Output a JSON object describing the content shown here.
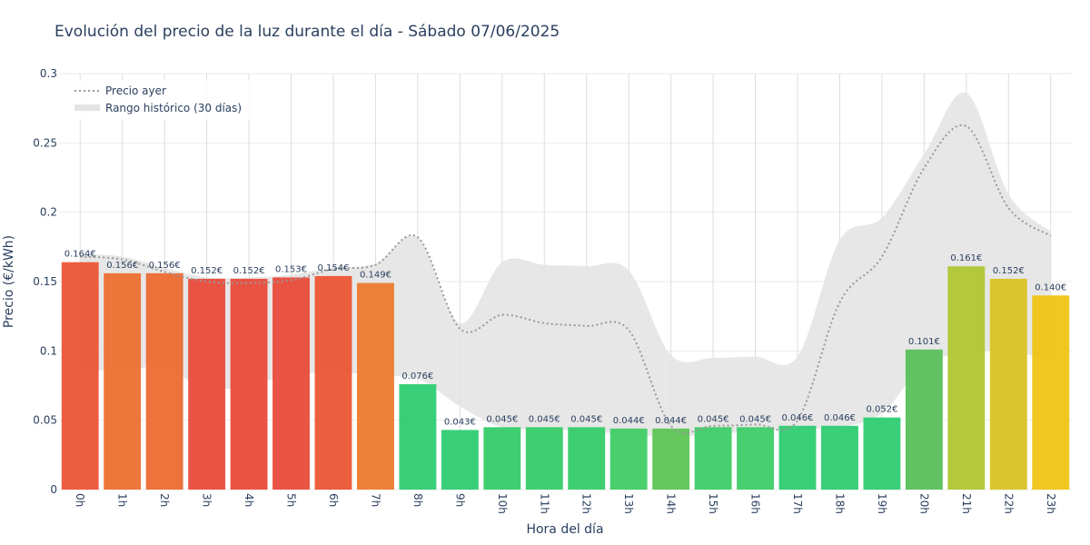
{
  "chart_data": {
    "type": "bar",
    "title": "Evolución del precio de la luz durante el día - Sábado 07/06/2025",
    "xlabel": "Hora del día",
    "ylabel": "Precio (€/kWh)",
    "ylim": [
      0,
      0.3
    ],
    "yticks": [
      "0",
      "0.05",
      "0.1",
      "0.15",
      "0.2",
      "0.25",
      "0.3"
    ],
    "ytick_values": [
      0,
      0.05,
      0.1,
      0.15,
      0.2,
      0.25,
      0.3
    ],
    "categories": [
      "0h",
      "1h",
      "2h",
      "3h",
      "4h",
      "5h",
      "6h",
      "7h",
      "8h",
      "9h",
      "10h",
      "11h",
      "12h",
      "13h",
      "14h",
      "15h",
      "16h",
      "17h",
      "18h",
      "19h",
      "20h",
      "21h",
      "22h",
      "23h"
    ],
    "values": [
      0.164,
      0.156,
      0.156,
      0.152,
      0.152,
      0.153,
      0.154,
      0.149,
      0.076,
      0.043,
      0.045,
      0.045,
      0.045,
      0.044,
      0.044,
      0.045,
      0.045,
      0.046,
      0.046,
      0.052,
      0.101,
      0.161,
      0.152,
      0.14
    ],
    "value_labels": [
      "0.164€",
      "0.156€",
      "0.156€",
      "0.152€",
      "0.152€",
      "0.153€",
      "0.154€",
      "0.149€",
      "0.076€",
      "0.043€",
      "0.045€",
      "0.045€",
      "0.045€",
      "0.044€",
      "0.044€",
      "0.045€",
      "0.045€",
      "0.046€",
      "0.046€",
      "0.052€",
      "0.101€",
      "0.161€",
      "0.152€",
      "0.140€"
    ],
    "bar_colors": [
      "#ec5535",
      "#ec6f2f",
      "#ec6a30",
      "#e94b3b",
      "#e94b3b",
      "#e94b3b",
      "#ec5535",
      "#ec7a2c",
      "#2ecc71",
      "#2ecc71",
      "#36cc68",
      "#36cc68",
      "#36cc68",
      "#40cc65",
      "#5cc556",
      "#3ecc67",
      "#3ecc67",
      "#2ecc71",
      "#2ecc71",
      "#2ecc71",
      "#5ac05a",
      "#b0c630",
      "#d8c224",
      "#efc414"
    ],
    "series": [
      {
        "name": "Precio ayer",
        "type": "line",
        "style": "dotted",
        "color": "#999999",
        "values": [
          0.168,
          0.166,
          0.157,
          0.15,
          0.149,
          0.151,
          0.159,
          0.162,
          0.182,
          0.116,
          0.126,
          0.12,
          0.118,
          0.115,
          0.046,
          0.046,
          0.047,
          0.05,
          0.135,
          0.168,
          0.232,
          0.262,
          0.203,
          0.183
        ]
      },
      {
        "name": "Rango histórico (30 días)",
        "type": "band",
        "color": "#e4e4e4",
        "lower": [
          0.086,
          0.086,
          0.088,
          0.072,
          0.076,
          0.082,
          0.085,
          0.082,
          0.08,
          0.06,
          0.045,
          0.044,
          0.042,
          0.04,
          0.038,
          0.04,
          0.042,
          0.044,
          0.045,
          0.055,
          0.09,
          0.098,
          0.1,
          0.093
        ],
        "upper": [
          0.17,
          0.168,
          0.16,
          0.153,
          0.153,
          0.155,
          0.16,
          0.163,
          0.182,
          0.12,
          0.164,
          0.162,
          0.161,
          0.158,
          0.097,
          0.095,
          0.096,
          0.096,
          0.18,
          0.196,
          0.242,
          0.286,
          0.213,
          0.186
        ]
      }
    ],
    "legend": {
      "position": "top-left",
      "entries": [
        "Precio ayer",
        "Rango histórico (30 días)"
      ]
    },
    "grid": true
  }
}
